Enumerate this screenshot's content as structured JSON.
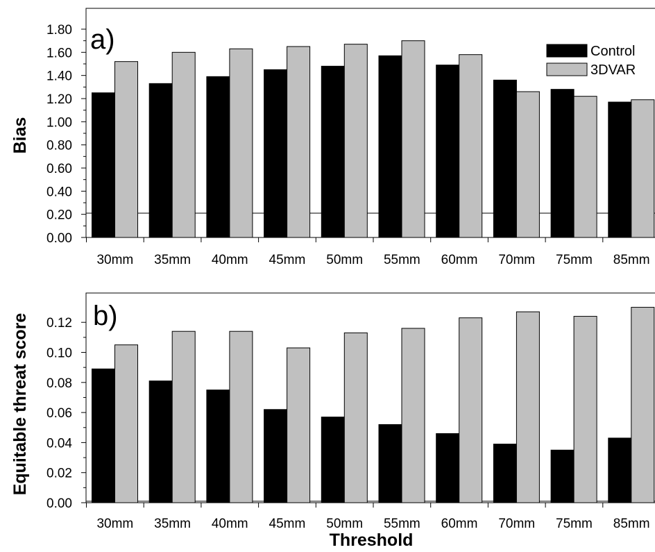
{
  "chart_data": [
    {
      "type": "bar",
      "panel_label": "a)",
      "categories": [
        "30mm",
        "35mm",
        "40mm",
        "45mm",
        "50mm",
        "55mm",
        "60mm",
        "70mm",
        "75mm",
        "85mm"
      ],
      "series": [
        {
          "name": "Control",
          "color": "#000000",
          "values": [
            1.25,
            1.33,
            1.39,
            1.45,
            1.48,
            1.57,
            1.49,
            1.36,
            1.28,
            1.17
          ]
        },
        {
          "name": "3DVAR",
          "color": "#c0c0c0",
          "values": [
            1.52,
            1.6,
            1.63,
            1.65,
            1.67,
            1.7,
            1.58,
            1.26,
            1.22,
            1.19
          ]
        }
      ],
      "title": "",
      "xlabel": "",
      "ylabel": "Bias",
      "ylim": [
        0,
        1.98
      ],
      "yticks": [
        "0.00",
        "0.20",
        "0.40",
        "0.60",
        "0.80",
        "1.00",
        "1.20",
        "1.40",
        "1.60",
        "1.80"
      ],
      "reference_line": 0.21,
      "legend": "top-right",
      "grid": false
    },
    {
      "type": "bar",
      "panel_label": "b)",
      "categories": [
        "30mm",
        "35mm",
        "40mm",
        "45mm",
        "50mm",
        "55mm",
        "60mm",
        "70mm",
        "75mm",
        "85mm"
      ],
      "series": [
        {
          "name": "Control",
          "color": "#000000",
          "values": [
            0.089,
            0.081,
            0.075,
            0.062,
            0.057,
            0.052,
            0.046,
            0.039,
            0.035,
            0.043
          ]
        },
        {
          "name": "3DVAR",
          "color": "#c0c0c0",
          "values": [
            0.105,
            0.114,
            0.114,
            0.103,
            0.113,
            0.116,
            0.123,
            0.127,
            0.124,
            0.13
          ]
        }
      ],
      "title": "",
      "xlabel": "Threshold",
      "ylabel": "Equitable threat score",
      "ylim": [
        0,
        0.1395
      ],
      "yticks": [
        "0.00",
        "0.02",
        "0.04",
        "0.06",
        "0.08",
        "0.10",
        "0.12"
      ],
      "reference_line": 0.001,
      "legend": "none",
      "grid": false
    }
  ]
}
